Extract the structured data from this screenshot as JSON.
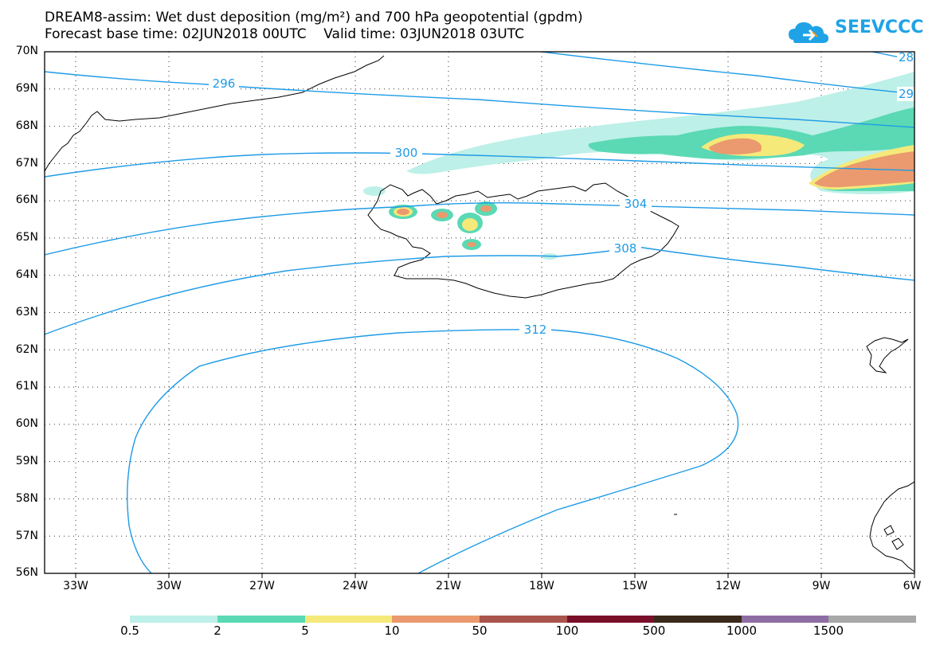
{
  "header": {
    "title_line1": "DREAM8-assim: Wet dust deposition (mg/m²) and 700 hPa geopotential (gpdm)",
    "title_line2": "Forecast base time: 02JUN2018 00UTC    Valid time: 03JUN2018 03UTC"
  },
  "logo": {
    "text": "SEEVCCC",
    "color": "#1fa3e6"
  },
  "axes": {
    "lat_labels": [
      "70N",
      "69N",
      "68N",
      "67N",
      "66N",
      "65N",
      "64N",
      "63N",
      "62N",
      "61N",
      "60N",
      "59N",
      "58N",
      "57N",
      "56N"
    ],
    "lon_labels": [
      "33W",
      "30W",
      "27W",
      "24W",
      "21W",
      "18W",
      "15W",
      "12W",
      "9W",
      "6W"
    ],
    "lat_range": [
      56,
      70
    ],
    "lon_range": [
      -34.5,
      -6
    ]
  },
  "contours": {
    "color": "#1e9be6",
    "labels": [
      "296",
      "300",
      "304",
      "308",
      "312",
      "28",
      "29"
    ]
  },
  "legend": {
    "colors": [
      "#bdf0e8",
      "#5ad9b4",
      "#f5e97a",
      "#ea9a6e",
      "#a9544c",
      "#7a0f2a",
      "#3a2a1c",
      "#8e6da3",
      "#a8a8a8"
    ],
    "labels": [
      "0.5",
      "2",
      "5",
      "10",
      "50",
      "100",
      "500",
      "1000",
      "1500"
    ]
  }
}
